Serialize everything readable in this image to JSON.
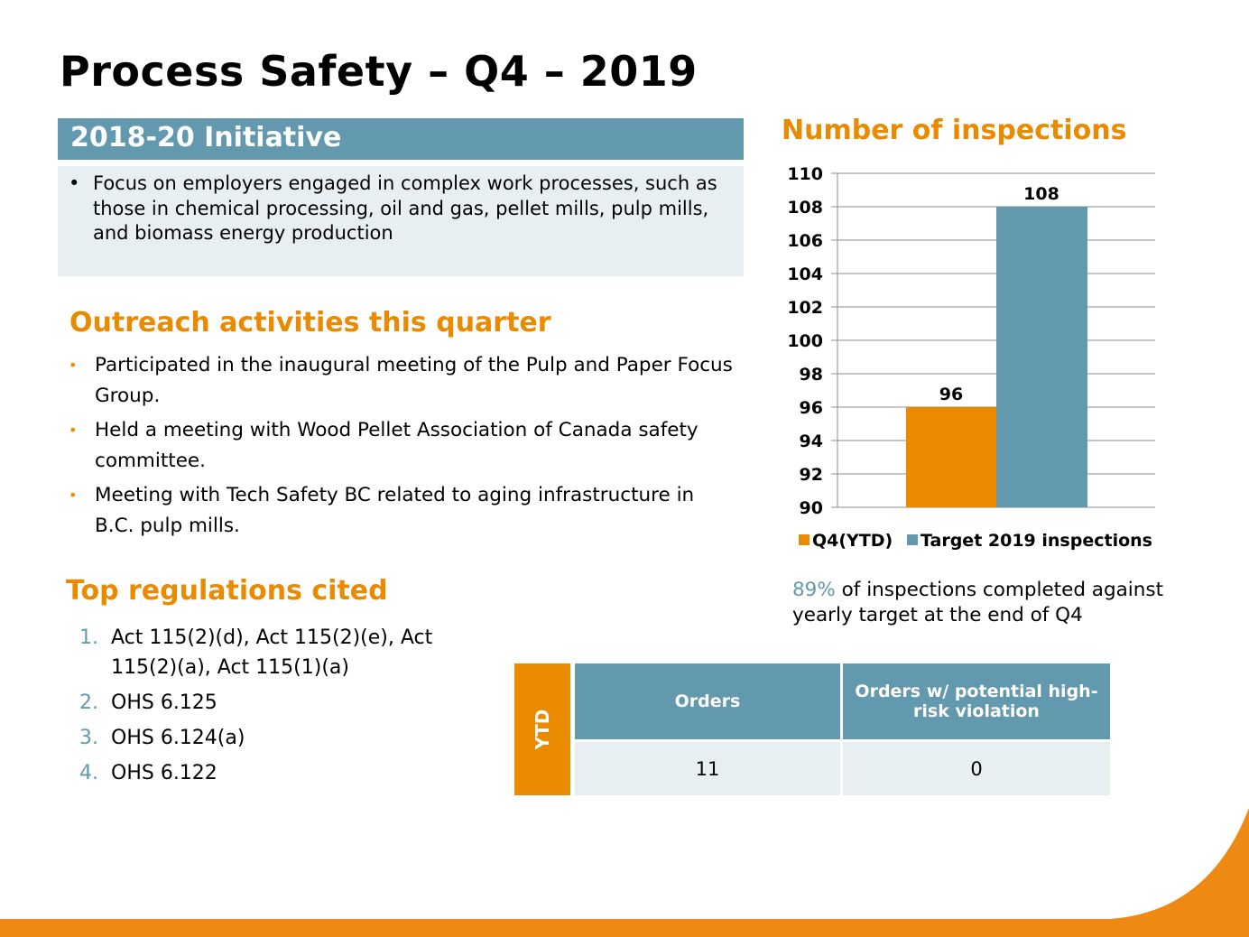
{
  "title": "Process Safety – Q4 – 2019",
  "initiative": {
    "heading": "2018-20 Initiative",
    "bullets": [
      "Focus on employers engaged in complex work processes, such as those in chemical processing, oil and gas, pellet mills, pulp mills, and biomass energy production"
    ]
  },
  "outreach": {
    "heading": "Outreach activities this quarter",
    "bullets": [
      "Participated in the inaugural meeting of the Pulp and Paper Focus Group.",
      "Held a meeting with Wood Pellet Association of Canada safety committee.",
      "Meeting with Tech Safety BC related to aging infrastructure in B.C. pulp mills."
    ]
  },
  "regulations": {
    "heading": "Top regulations cited",
    "items": [
      {
        "num": "1.",
        "text": "Act 115(2)(d), Act 115(2)(e), Act 115(2)(a), Act 115(1)(a)"
      },
      {
        "num": "2.",
        "text": "OHS 6.125"
      },
      {
        "num": "3.",
        "text": "OHS 6.124(a)"
      },
      {
        "num": "4.",
        "text": "OHS 6.122"
      }
    ]
  },
  "summary": {
    "highlight": "89%",
    "text": " of inspections completed against yearly target at the end of Q4"
  },
  "table": {
    "row_label": "YTD",
    "headers": [
      "Orders",
      "Orders w/ potential high-risk violation"
    ],
    "values": [
      "11",
      "0"
    ]
  },
  "colors": {
    "orange": "#ea8a00",
    "teal": "#6399ae",
    "light": "#e8eff3"
  },
  "chart_data": {
    "type": "bar",
    "title": "Number of inspections",
    "categories": [
      ""
    ],
    "series": [
      {
        "name": "Q4(YTD)",
        "values": [
          96
        ],
        "color": "#ea8a00"
      },
      {
        "name": "Target 2019 inspections",
        "values": [
          108
        ],
        "color": "#6399ae"
      }
    ],
    "ylim": [
      90,
      110
    ],
    "yticks": [
      "90",
      "92",
      "94",
      "96",
      "98",
      "100",
      "102",
      "104",
      "106",
      "108",
      "110"
    ],
    "data_labels": [
      "96",
      "108"
    ],
    "grid": true,
    "legend": "bottom"
  }
}
